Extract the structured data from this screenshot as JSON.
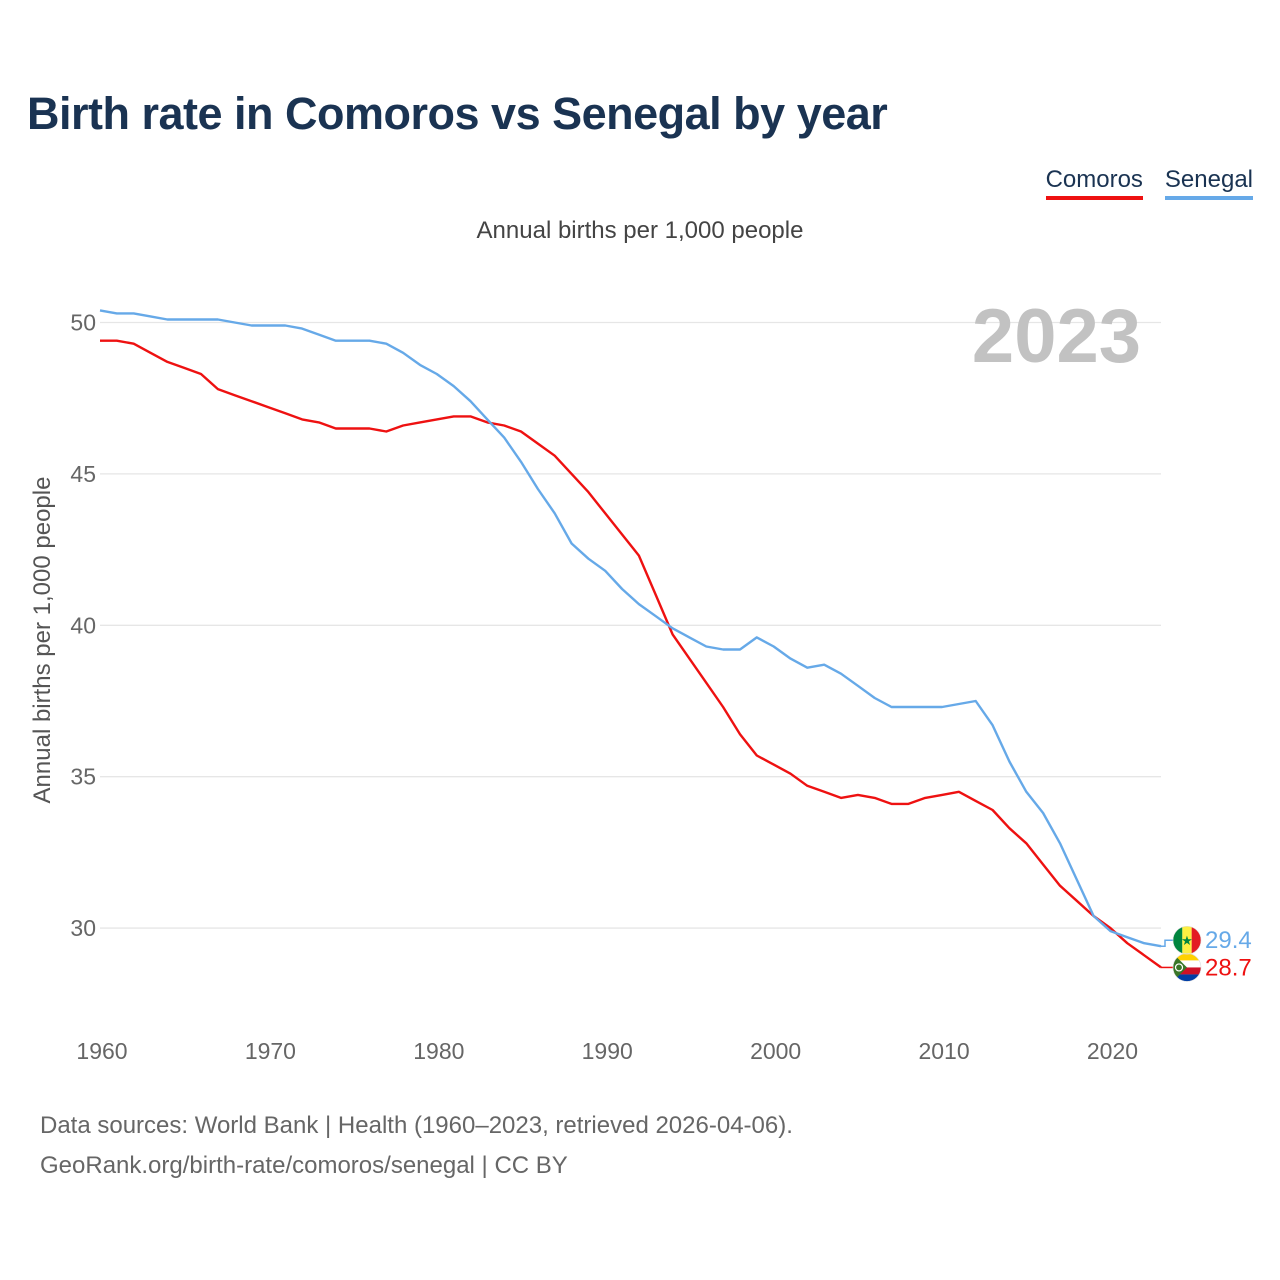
{
  "title": "Birth rate in Comoros vs Senegal by year",
  "subtitle": "Annual births per 1,000 people",
  "year_watermark": "2023",
  "source_line1": "Data sources: World Bank | Health (1960–2023, retrieved 2026-04-06).",
  "source_line2": "GeoRank.org/birth-rate/comoros/senegal | CC BY",
  "chart_data": {
    "type": "line",
    "title": "Birth rate in Comoros vs Senegal by year",
    "subtitle": "Annual births per 1,000 people",
    "xlabel": "",
    "ylabel": "Annual births per 1,000 people",
    "xlim": [
      1960,
      2023
    ],
    "ylim": [
      26.7,
      51.8
    ],
    "x_ticks": [
      1960,
      1970,
      1980,
      1990,
      2000,
      2010,
      2020
    ],
    "y_ticks": [
      30,
      35,
      40,
      45,
      50
    ],
    "legend_position": "top-right",
    "grid": true,
    "x": [
      1960,
      1961,
      1962,
      1963,
      1964,
      1965,
      1966,
      1967,
      1968,
      1969,
      1970,
      1971,
      1972,
      1973,
      1974,
      1975,
      1976,
      1977,
      1978,
      1979,
      1980,
      1981,
      1982,
      1983,
      1984,
      1985,
      1986,
      1987,
      1988,
      1989,
      1990,
      1991,
      1992,
      1993,
      1994,
      1995,
      1996,
      1997,
      1998,
      1999,
      2000,
      2001,
      2002,
      2003,
      2004,
      2005,
      2006,
      2007,
      2008,
      2009,
      2010,
      2011,
      2012,
      2013,
      2014,
      2015,
      2016,
      2017,
      2018,
      2019,
      2020,
      2021,
      2022,
      2023
    ],
    "series": [
      {
        "name": "Comoros",
        "color": "#ee1111",
        "end_label": "28.7",
        "flag": "comoros-flag-icon",
        "values": [
          49.4,
          49.4,
          49.3,
          49.0,
          48.7,
          48.5,
          48.3,
          47.8,
          47.6,
          47.4,
          47.2,
          47.0,
          46.8,
          46.7,
          46.5,
          46.5,
          46.5,
          46.4,
          46.6,
          46.7,
          46.8,
          46.9,
          46.9,
          46.7,
          46.6,
          46.4,
          46.0,
          45.6,
          45.0,
          44.4,
          43.7,
          43.0,
          42.3,
          41.0,
          39.7,
          38.9,
          38.1,
          37.3,
          36.4,
          35.7,
          35.4,
          35.1,
          34.7,
          34.5,
          34.3,
          34.4,
          34.3,
          34.1,
          34.1,
          34.3,
          34.4,
          34.5,
          34.2,
          33.9,
          33.3,
          32.8,
          32.1,
          31.4,
          30.9,
          30.4,
          30.0,
          29.5,
          29.1,
          28.7
        ]
      },
      {
        "name": "Senegal",
        "color": "#66a9e8",
        "end_label": "29.4",
        "flag": "senegal-flag-icon",
        "values": [
          50.4,
          50.3,
          50.3,
          50.2,
          50.1,
          50.1,
          50.1,
          50.1,
          50.0,
          49.9,
          49.9,
          49.9,
          49.8,
          49.6,
          49.4,
          49.4,
          49.4,
          49.3,
          49.0,
          48.6,
          48.3,
          47.9,
          47.4,
          46.8,
          46.2,
          45.4,
          44.5,
          43.7,
          42.7,
          42.2,
          41.8,
          41.2,
          40.7,
          40.3,
          39.9,
          39.6,
          39.3,
          39.2,
          39.2,
          39.6,
          39.3,
          38.9,
          38.6,
          38.7,
          38.4,
          38.0,
          37.6,
          37.3,
          37.3,
          37.3,
          37.3,
          37.4,
          37.5,
          36.7,
          35.5,
          34.5,
          33.8,
          32.8,
          31.6,
          30.4,
          29.9,
          29.7,
          29.5,
          29.4
        ]
      }
    ]
  }
}
